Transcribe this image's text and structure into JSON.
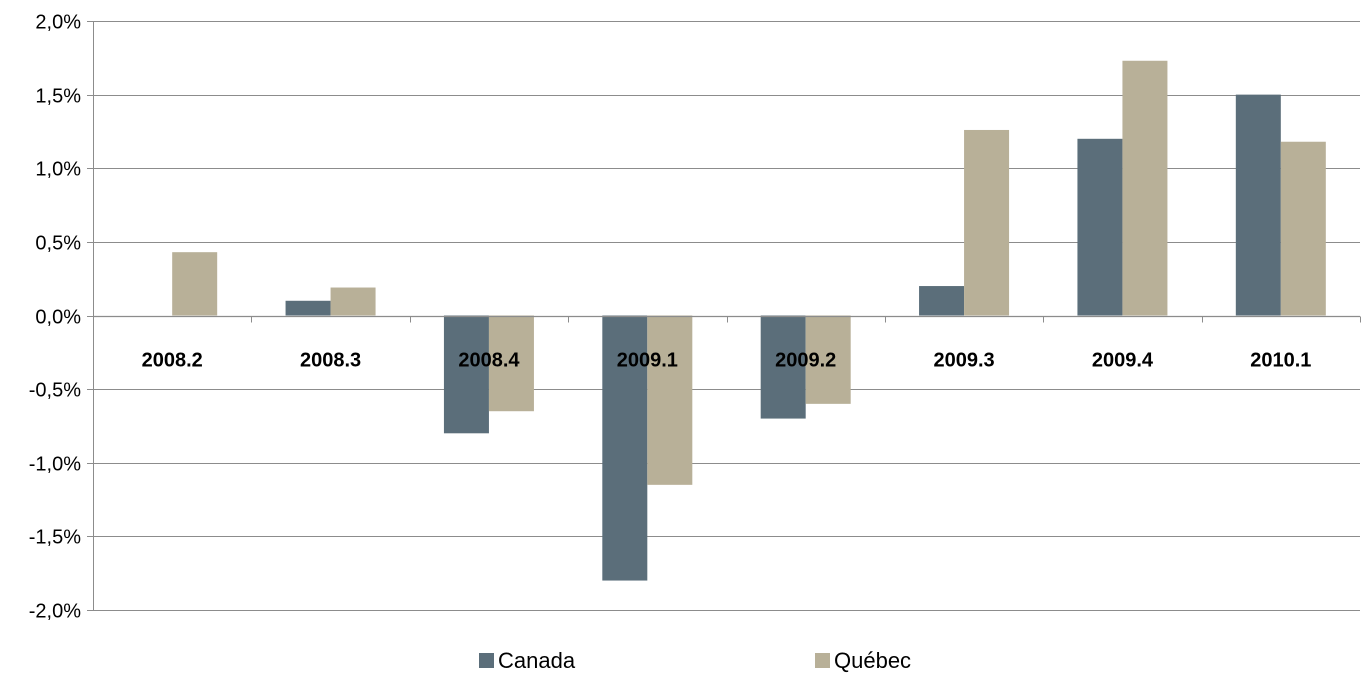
{
  "chart_data": {
    "type": "bar",
    "title": "",
    "xlabel": "",
    "ylabel": "",
    "categories": [
      "2008.2",
      "2008.3",
      "2008.4",
      "2009.1",
      "2009.2",
      "2009.3",
      "2009.4",
      "2010.1"
    ],
    "series": [
      {
        "name": "Canada",
        "color": "#5b6e7a",
        "values": [
          0.0,
          0.1,
          -0.8,
          -1.8,
          -0.7,
          0.2,
          1.2,
          1.5
        ]
      },
      {
        "name": "Québec",
        "color": "#b8b098",
        "values": [
          0.43,
          0.19,
          -0.65,
          -1.15,
          -0.6,
          1.26,
          1.73,
          1.18
        ]
      }
    ],
    "ylim": [
      -2.0,
      2.0
    ],
    "yticks": [
      2.0,
      1.5,
      1.0,
      0.5,
      0.0,
      -0.5,
      -1.0,
      -1.5,
      -2.0
    ],
    "ytick_labels": [
      "2,0%",
      "1,5%",
      "1,0%",
      "0,5%",
      "0,0%",
      "-0,5%",
      "-1,0%",
      "-1,5%",
      "-2,0%"
    ],
    "grid": true,
    "legend_position": "bottom"
  }
}
